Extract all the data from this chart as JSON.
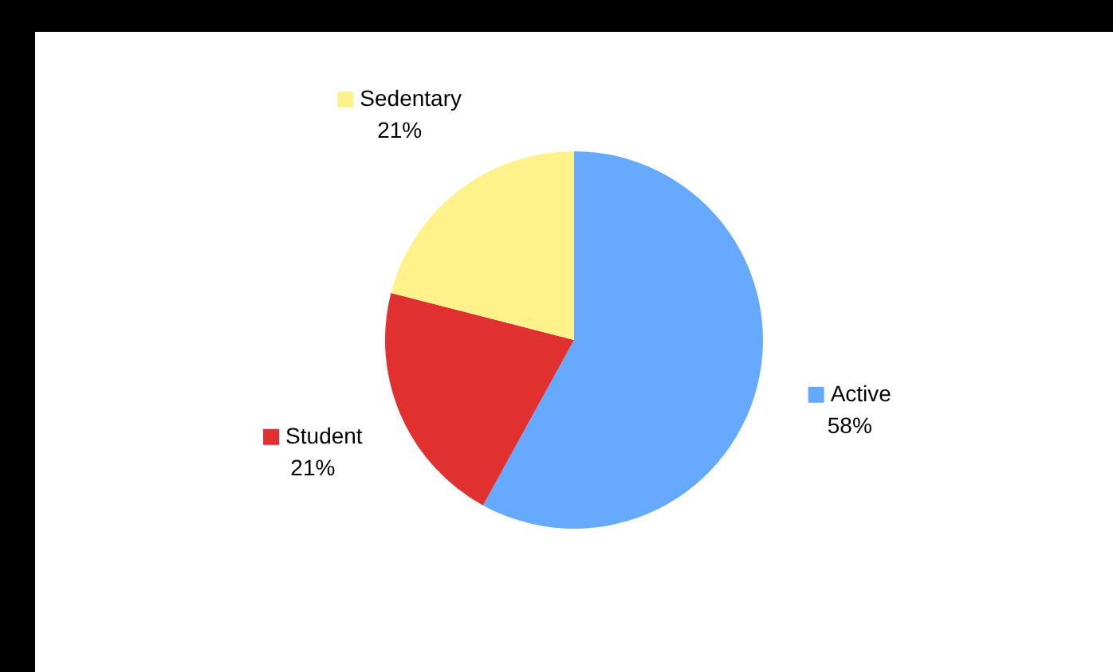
{
  "chart_data": {
    "type": "pie",
    "categories": [
      "Active",
      "Student",
      "Sedentary"
    ],
    "values": [
      58,
      21,
      21
    ],
    "colors": [
      "#66aaff",
      "#e03030",
      "#fff28a"
    ],
    "value_labels": [
      "58%",
      "21%",
      "21%"
    ],
    "legend": "right"
  }
}
